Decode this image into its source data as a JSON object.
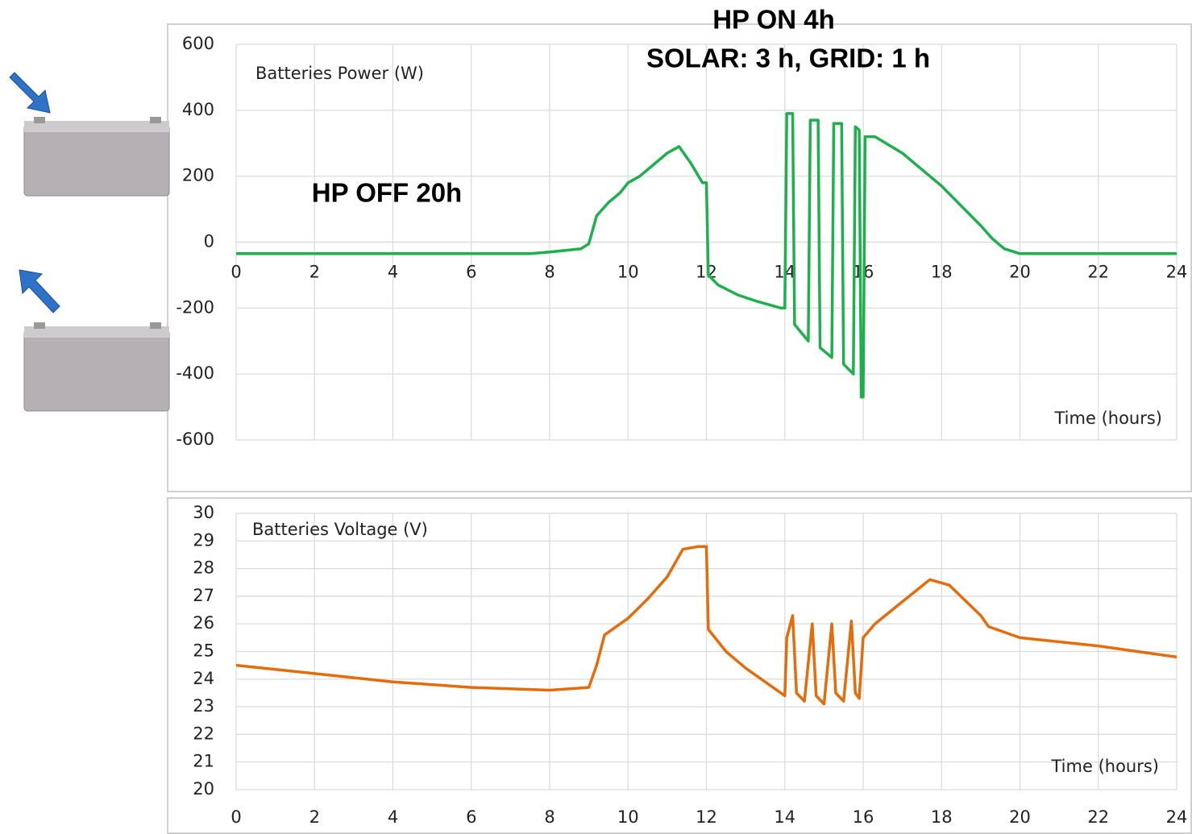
{
  "chart_data": [
    {
      "type": "line",
      "title": "Batteries Power (W)",
      "xlabel": "Time (hours)",
      "color": "#1fb04e",
      "annotations": [
        "HP ON 4h",
        "SOLAR: 3 h, GRID: 1 h",
        "HP OFF 20h"
      ],
      "x": [
        0,
        7.5,
        8,
        8.8,
        9.0,
        9.2,
        9.5,
        9.8,
        10,
        10.3,
        10.6,
        11,
        11.3,
        11.6,
        11.9,
        12.0,
        12.05,
        12.3,
        12.8,
        13.3,
        13.9,
        14.0,
        14.05,
        14.2,
        14.25,
        14.6,
        14.65,
        14.85,
        14.9,
        15.2,
        15.25,
        15.45,
        15.5,
        15.75,
        15.8,
        15.9,
        15.95,
        16.0,
        16.05,
        16.3,
        17,
        18,
        19,
        19.3,
        19.6,
        20,
        24
      ],
      "values": [
        -35,
        -35,
        -30,
        -20,
        -5,
        80,
        120,
        150,
        180,
        200,
        230,
        270,
        290,
        240,
        180,
        180,
        -100,
        -130,
        -160,
        -180,
        -200,
        -200,
        390,
        390,
        -250,
        -300,
        370,
        370,
        -320,
        -350,
        360,
        360,
        -370,
        -400,
        350,
        340,
        -470,
        -470,
        320,
        320,
        270,
        170,
        50,
        10,
        -20,
        -35,
        -35
      ],
      "xlim": [
        0,
        24
      ],
      "xticks": [
        0,
        2,
        4,
        6,
        8,
        10,
        12,
        14,
        16,
        18,
        20,
        22,
        24
      ],
      "ylim": [
        -600,
        600
      ],
      "yticks": [
        -600,
        -400,
        -200,
        0,
        200,
        400,
        600
      ],
      "grid": true
    },
    {
      "type": "line",
      "title": "Batteries Voltage (V)",
      "xlabel": "Time (hours)",
      "color": "#e46c0a",
      "x": [
        0,
        2,
        4,
        6,
        8,
        9,
        9.2,
        9.4,
        9.7,
        10,
        10.5,
        11,
        11.4,
        11.8,
        12.0,
        12.05,
        12.5,
        13,
        13.6,
        14.0,
        14.05,
        14.2,
        14.3,
        14.5,
        14.7,
        14.8,
        15.0,
        15.2,
        15.3,
        15.5,
        15.7,
        15.8,
        15.9,
        16.0,
        16.3,
        17,
        17.7,
        18.2,
        19,
        19.2,
        20,
        22,
        24
      ],
      "values": [
        24.5,
        24.2,
        23.9,
        23.7,
        23.6,
        23.7,
        24.5,
        25.6,
        25.9,
        26.2,
        26.9,
        27.7,
        28.7,
        28.8,
        28.8,
        25.8,
        25.0,
        24.4,
        23.8,
        23.4,
        25.5,
        26.3,
        23.5,
        23.2,
        26.0,
        23.4,
        23.1,
        26.0,
        23.5,
        23.2,
        26.1,
        23.5,
        23.3,
        25.5,
        26.0,
        26.8,
        27.6,
        27.4,
        26.3,
        25.9,
        25.5,
        25.2,
        24.8
      ],
      "xlim": [
        0,
        24
      ],
      "xticks": [
        0,
        2,
        4,
        6,
        8,
        10,
        12,
        14,
        16,
        18,
        20,
        22,
        24
      ],
      "ylim": [
        20,
        30
      ],
      "yticks": [
        20,
        21,
        22,
        23,
        24,
        25,
        26,
        27,
        28,
        29,
        30
      ],
      "grid": true
    }
  ]
}
